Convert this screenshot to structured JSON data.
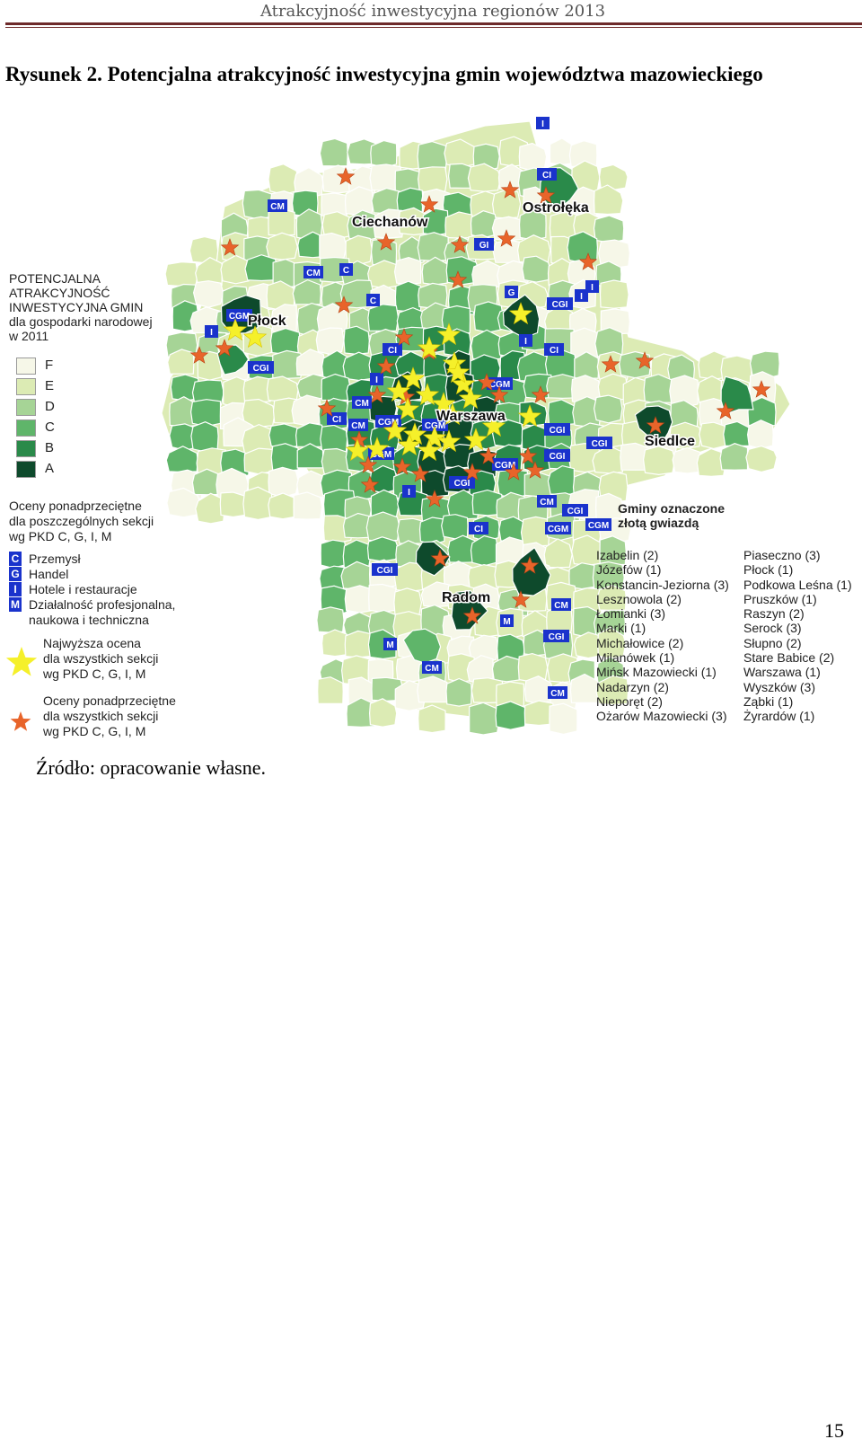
{
  "header": {
    "running_title": "Atrakcyjność inwestycyjna regionów 2013"
  },
  "figure": {
    "title": "Rysunek 2. Potencjalna atrakcyjność inwestycyjna gmin województwa mazowieckiego"
  },
  "legend": {
    "heading_lines": [
      "POTENCJALNA",
      "ATRAKCYJNOŚĆ",
      "INWESTYCYJNA GMIN",
      "dla gospodarki narodowej",
      "w 2011"
    ],
    "classes": [
      {
        "label": "F",
        "color": "#f6f7e8"
      },
      {
        "label": "E",
        "color": "#dcebb4"
      },
      {
        "label": "D",
        "color": "#a6d496"
      },
      {
        "label": "C",
        "color": "#5fb56a"
      },
      {
        "label": "B",
        "color": "#2a8a4a"
      },
      {
        "label": "A",
        "color": "#0e4a2c"
      }
    ],
    "sections_heading_lines": [
      "Oceny ponadprzeciętne",
      "dla poszczególnych sekcji",
      "wg PKD   C, G, I, M"
    ],
    "sections": [
      {
        "letter": "C",
        "label": "Przemysł"
      },
      {
        "letter": "G",
        "label": "Handel"
      },
      {
        "letter": "I",
        "label": "Hotele i restauracje"
      },
      {
        "letter": "M",
        "label": "Działalność profesjonalna,"
      },
      {
        "letter": "",
        "label": "naukowa i techniczna"
      }
    ],
    "gold_star_lines": [
      "Najwyższa ocena",
      "dla wszystkich sekcji",
      "wg PKD     C, G, I, M"
    ],
    "orange_star_lines": [
      "Oceny ponadprzeciętne",
      "dla wszystkich sekcji",
      "wg PKD    C, G, I, M"
    ],
    "gold_star_color": "#f5f02a",
    "orange_star_color": "#e8642a",
    "tag_color": "#1a33cc"
  },
  "gold_gminy": {
    "heading_lines": [
      "Gminy oznaczone",
      "złotą gwiazdą"
    ],
    "col1": [
      "Izabelin (2)",
      "Józefów (1)",
      "Konstancin-Jeziorna (3)",
      "Lesznowola (2)",
      "Łomianki (3)",
      "Marki (1)",
      "Michałowice (2)",
      "Milanówek (1)",
      "Mińsk Mazowiecki (1)",
      "Nadarzyn (2)",
      "Nieporęt (2)",
      "Ożarów Mazowiecki (3)"
    ],
    "col2": [
      "Piaseczno (3)",
      "Płock (1)",
      "Podkowa Leśna (1)",
      "Pruszków (1)",
      "Raszyn (2)",
      "Serock (3)",
      "Słupno (2)",
      "Stare Babice (2)",
      "Warszawa (1)",
      "Wyszków (3)",
      "Ząbki (1)",
      "Żyrardów (1)"
    ]
  },
  "map": {
    "cities": [
      {
        "name": "Ciechanów"
      },
      {
        "name": "Ostrołęka"
      },
      {
        "name": "Płock"
      },
      {
        "name": "Warszawa"
      },
      {
        "name": "Siedlce"
      },
      {
        "name": "Radom"
      }
    ],
    "tags": [
      "I",
      "CI",
      "CM",
      "GI",
      "CM",
      "C",
      "C",
      "G",
      "CGI",
      "CGM",
      "I",
      "CGI",
      "CI",
      "I",
      "CI",
      "CGM",
      "CM",
      "CI",
      "CM",
      "CGM",
      "CGM",
      "CGI",
      "CGI",
      "CGI",
      "CGM",
      "CGM",
      "CGI",
      "CM",
      "CGI",
      "CGM",
      "CGM",
      "CI",
      "CGI",
      "CM",
      "M",
      "M",
      "CGI",
      "CM",
      "CM",
      "I",
      "I",
      "I",
      "I"
    ]
  },
  "source": "Źródło: opracowanie własne.",
  "page_number": "15"
}
